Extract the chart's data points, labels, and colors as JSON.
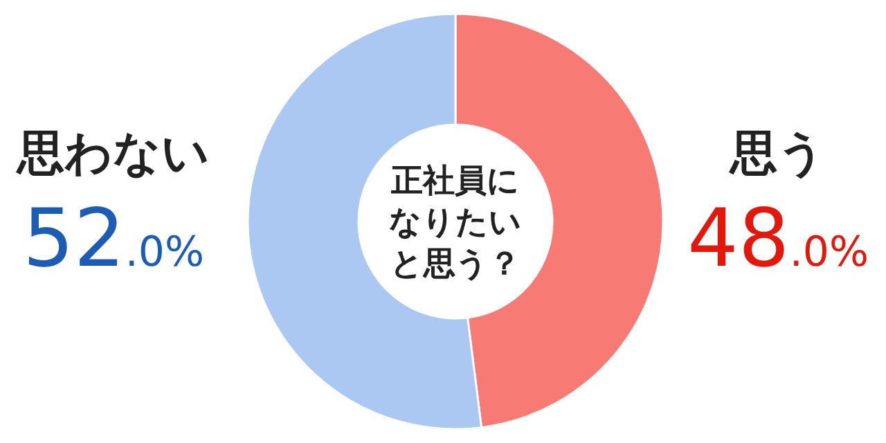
{
  "chart_data": {
    "type": "donut",
    "title": "正社員になりたいと思う？",
    "categories": [
      "思う",
      "思わない"
    ],
    "values": [
      48.0,
      52.0
    ],
    "colors": [
      "#f77b74",
      "#aac8f2"
    ],
    "value_labels": [
      "48.0%",
      "52.0%"
    ]
  }
}
